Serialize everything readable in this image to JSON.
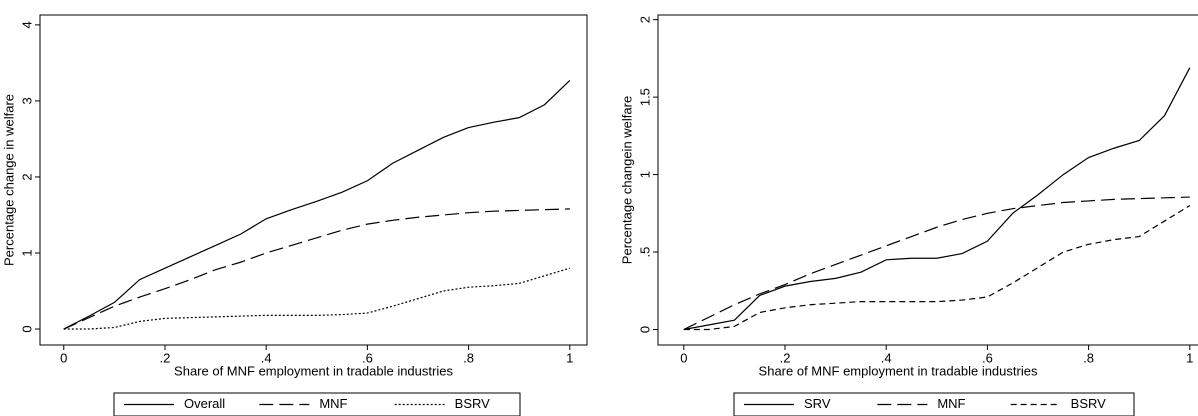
{
  "chart_data": [
    {
      "type": "line",
      "x_label": "Share of MNF employment in tradable industries",
      "y_label": "Percentage change in welfare",
      "x": [
        0,
        0.05,
        0.1,
        0.15,
        0.2,
        0.25,
        0.3,
        0.35,
        0.4,
        0.45,
        0.5,
        0.55,
        0.6,
        0.65,
        0.7,
        0.75,
        0.8,
        0.85,
        0.9,
        0.95,
        1
      ],
      "series": [
        {
          "name": "Overall",
          "color": "#000000",
          "dash": "none",
          "values": [
            0,
            0.17,
            0.35,
            0.65,
            0.8,
            0.95,
            1.1,
            1.25,
            1.45,
            1.57,
            1.68,
            1.8,
            1.95,
            2.18,
            2.35,
            2.52,
            2.65,
            2.72,
            2.78,
            2.95,
            3.27
          ]
        },
        {
          "name": "MNF",
          "color": "#000000",
          "dash": "14 6",
          "values": [
            0,
            0.15,
            0.3,
            0.42,
            0.53,
            0.65,
            0.78,
            0.88,
            1.0,
            1.1,
            1.2,
            1.3,
            1.38,
            1.43,
            1.47,
            1.5,
            1.53,
            1.55,
            1.56,
            1.57,
            1.58
          ]
        },
        {
          "name": "BSRV",
          "color": "#000000",
          "dash": "2 2",
          "values": [
            0,
            0,
            0.02,
            0.1,
            0.14,
            0.15,
            0.16,
            0.17,
            0.18,
            0.18,
            0.18,
            0.19,
            0.21,
            0.3,
            0.4,
            0.5,
            0.55,
            0.57,
            0.6,
            0.7,
            0.8
          ]
        }
      ],
      "xlim": [
        -0.047,
        1.034
      ],
      "xticks": [
        0,
        {
          "value": 0.2,
          "label": ".2"
        },
        {
          "value": 0.4,
          "label": ".4"
        },
        {
          "value": 0.6,
          "label": ".6"
        },
        {
          "value": 0.8,
          "label": ".8"
        },
        1
      ],
      "ylim": [
        -0.21,
        4.13
      ],
      "yticks": [
        0,
        1,
        2,
        3,
        4
      ]
    },
    {
      "type": "line",
      "x_label": "Share of MNF employment in tradable industries",
      "y_label": "Percentage changein welfare",
      "x": [
        0,
        0.05,
        0.1,
        0.15,
        0.2,
        0.25,
        0.3,
        0.35,
        0.4,
        0.45,
        0.5,
        0.55,
        0.6,
        0.65,
        0.7,
        0.75,
        0.8,
        0.85,
        0.9,
        0.95,
        1
      ],
      "series": [
        {
          "name": "SRV",
          "color": "#000000",
          "dash": "none",
          "values": [
            0,
            0.03,
            0.06,
            0.22,
            0.28,
            0.31,
            0.33,
            0.37,
            0.45,
            0.46,
            0.46,
            0.49,
            0.57,
            0.75,
            0.87,
            1.0,
            1.11,
            1.17,
            1.22,
            1.38,
            1.69
          ]
        },
        {
          "name": "MNF",
          "color": "#000000",
          "dash": "14 6",
          "values": [
            0,
            0.08,
            0.16,
            0.23,
            0.29,
            0.36,
            0.42,
            0.48,
            0.54,
            0.6,
            0.66,
            0.71,
            0.75,
            0.78,
            0.8,
            0.82,
            0.83,
            0.84,
            0.845,
            0.85,
            0.855
          ]
        },
        {
          "name": "BSRV",
          "color": "#000000",
          "dash": "6 4",
          "values": [
            0,
            0,
            0.02,
            0.11,
            0.14,
            0.16,
            0.17,
            0.18,
            0.18,
            0.18,
            0.18,
            0.19,
            0.21,
            0.3,
            0.4,
            0.5,
            0.55,
            0.58,
            0.6,
            0.7,
            0.8
          ]
        }
      ],
      "xlim": [
        -0.051,
        1.034
      ],
      "xticks": [
        0,
        {
          "value": 0.2,
          "label": ".2"
        },
        {
          "value": 0.4,
          "label": ".4"
        },
        {
          "value": 0.6,
          "label": ".6"
        },
        {
          "value": 0.8,
          "label": ".8"
        },
        1
      ],
      "ylim": [
        -0.1,
        2.03
      ],
      "yticks": [
        0,
        {
          "value": 0.5,
          "label": ".5"
        },
        1,
        1.5,
        2
      ]
    }
  ]
}
